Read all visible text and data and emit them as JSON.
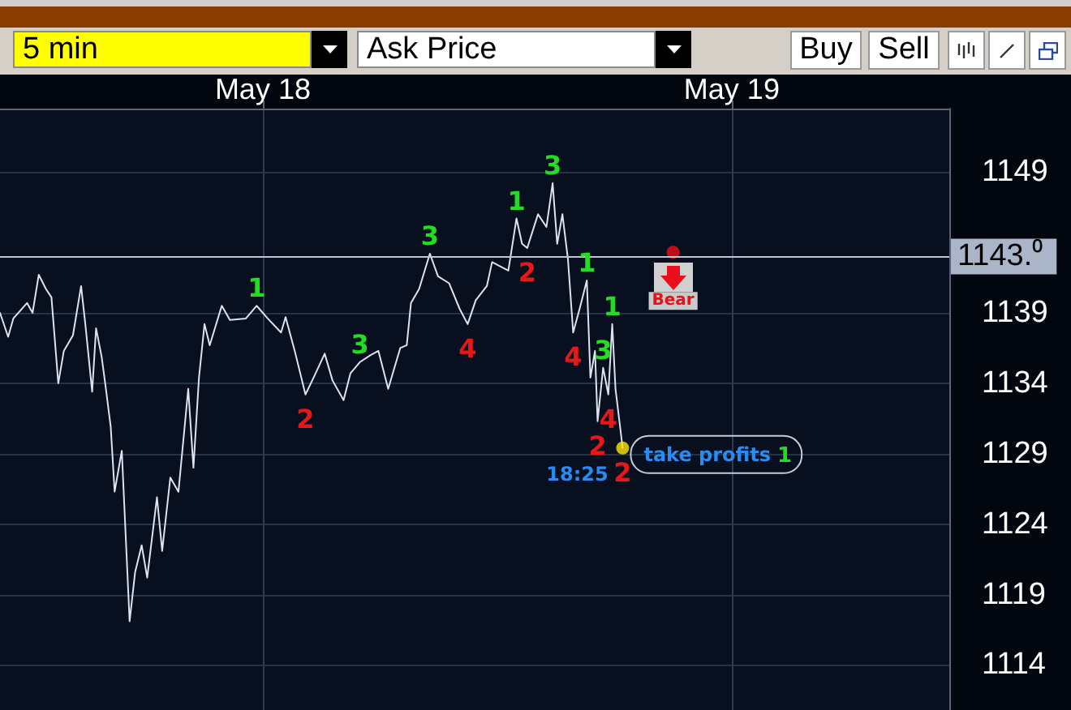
{
  "chart_data": {
    "type": "line",
    "annotations": [
      "5 min",
      "Ask Price",
      "Buy",
      "Sell",
      "18:25",
      "take profits",
      "1",
      "Bear",
      {
        "text": "1",
        "x": "--05-17T23:41",
        "y": 1139.5
      },
      {
        "text": "2",
        "x": "--05-18T02:11",
        "y": 1133.2
      },
      {
        "text": "3",
        "x": "--05-18T04:58",
        "y": 1135.5
      },
      {
        "text": "3",
        "x": "--05-18T08:33",
        "y": 1143.2
      },
      {
        "text": "4",
        "x": "--05-18T10:29",
        "y": 1138.2
      },
      {
        "text": "1",
        "x": "--05-18T12:59",
        "y": 1145.7
      },
      {
        "text": "2",
        "x": "--05-18T13:32",
        "y": 1143.6
      },
      {
        "text": "3",
        "x": "--05-18T14:50",
        "y": 1148.2
      },
      {
        "text": "4",
        "x": "--05-18T15:53",
        "y": 1137.6
      },
      {
        "text": "1",
        "x": "--05-18T16:35",
        "y": 1141.3
      },
      {
        "text": "2",
        "x": "--05-18T17:08",
        "y": 1131.3
      },
      {
        "text": "3",
        "x": "--05-18T17:25",
        "y": 1135.1
      },
      {
        "text": "4",
        "x": "--05-18T17:41",
        "y": 1133.2
      },
      {
        "text": "1",
        "x": "--05-18T17:53",
        "y": 1138.2
      },
      {
        "text": "2",
        "x": "--05-18T18:25",
        "y": 1129.4
      }
    ],
    "xlim": [
      "--05-17T10:33",
      "--05-19T11:08"
    ],
    "xticks": [
      {
        "value": "--05-18",
        "label": "May 18"
      },
      {
        "value": "--05-19",
        "label": "May 19"
      }
    ],
    "ylim": [
      1110.8,
      1153.5
    ],
    "yticks": [
      1114,
      1119,
      1124,
      1129,
      1134,
      1139,
      1149
    ],
    "grid": true,
    "ref_lines": [
      {
        "axis": "y",
        "value": 1143,
        "label": "1143.⁰",
        "color": "#c0c5cf"
      }
    ],
    "series": [
      {
        "color": "#dde2ee",
        "marker": "none",
        "x": [
          "--05-17T10:33",
          "--05-17T10:58",
          "--05-17T11:14",
          "--05-17T11:56",
          "--05-17T12:13",
          "--05-17T12:32",
          "--05-17T12:54",
          "--05-17T13:11",
          "--05-17T13:32",
          "--05-17T13:49",
          "--05-17T14:17",
          "--05-17T14:42",
          "--05-17T14:55",
          "--05-17T15:16",
          "--05-17T15:28",
          "--05-17T15:45",
          "--05-17T15:56",
          "--05-17T16:13",
          "--05-17T16:25",
          "--05-17T16:47",
          "--05-17T17:11",
          "--05-17T17:28",
          "--05-17T17:48",
          "--05-17T18:05",
          "--05-17T18:35",
          "--05-17T18:51",
          "--05-17T19:16",
          "--05-17T19:41",
          "--05-17T20:11",
          "--05-17T20:27",
          "--05-17T20:44",
          "--05-17T21:01",
          "--05-17T21:17",
          "--05-17T21:54",
          "--05-17T22:19",
          "--05-17T23:08",
          "--05-17T23:41",
          "--05-18T00:15",
          "--05-18T00:56",
          "--05-18T01:10",
          "--05-18T01:38",
          "--05-18T02:11",
          "--05-18T02:36",
          "--05-18T03:10",
          "--05-18T03:34",
          "--05-18T04:08",
          "--05-18T04:29",
          "--05-18T04:58",
          "--05-18T05:31",
          "--05-18T05:55",
          "--05-18T06:25",
          "--05-18T07:02",
          "--05-18T07:22",
          "--05-18T07:35",
          "--05-18T08:00",
          "--05-18T08:33",
          "--05-18T08:58",
          "--05-18T09:32",
          "--05-18T10:04",
          "--05-18T10:29",
          "--05-18T10:54",
          "--05-18T11:28",
          "--05-18T11:44",
          "--05-18T12:34",
          "--05-18T12:59",
          "--05-18T13:16",
          "--05-18T13:32",
          "--05-18T14:05",
          "--05-18T14:31",
          "--05-18T14:50",
          "--05-18T15:04",
          "--05-18T15:20",
          "--05-18T15:37",
          "--05-18T15:53",
          "--05-18T16:13",
          "--05-18T16:35",
          "--05-18T16:46",
          "--05-18T17:00",
          "--05-18T17:08",
          "--05-18T17:25",
          "--05-18T17:41",
          "--05-18T17:53",
          "--05-18T18:03",
          "--05-18T18:25"
        ],
        "values": [
          1139.0,
          1137.3,
          1138.6,
          1139.7,
          1139.0,
          1141.7,
          1140.7,
          1140.1,
          1134.0,
          1136.3,
          1137.4,
          1140.9,
          1138.2,
          1133.4,
          1137.9,
          1135.9,
          1134.0,
          1130.9,
          1126.3,
          1129.2,
          1117.1,
          1120.6,
          1122.5,
          1120.2,
          1125.9,
          1122.1,
          1127.3,
          1126.3,
          1133.6,
          1128.0,
          1134.4,
          1138.2,
          1136.7,
          1139.5,
          1138.5,
          1138.6,
          1139.5,
          1138.6,
          1137.6,
          1138.7,
          1136.3,
          1133.2,
          1134.4,
          1136.1,
          1134.2,
          1132.8,
          1134.7,
          1135.5,
          1136.0,
          1136.3,
          1133.6,
          1136.5,
          1136.7,
          1139.7,
          1140.7,
          1143.2,
          1141.6,
          1141.1,
          1139.3,
          1138.2,
          1139.9,
          1140.9,
          1142.6,
          1142.0,
          1145.7,
          1143.9,
          1143.6,
          1146.0,
          1145.1,
          1148.2,
          1143.9,
          1146.0,
          1142.8,
          1137.6,
          1139.3,
          1141.3,
          1134.4,
          1136.3,
          1131.3,
          1135.1,
          1133.2,
          1138.2,
          1133.6,
          1129.4
        ]
      },
      {
        "type": "scatter",
        "color": "#ffe600",
        "marker": "circle",
        "x": [
          "--05-18T18:25"
        ],
        "values": [
          1129.4
        ]
      },
      {
        "type": "scatter",
        "color": "#e8101a",
        "marker": "circle",
        "x": [
          "--05-18T21:00"
        ],
        "values": [
          1143.3
        ]
      }
    ]
  }
}
